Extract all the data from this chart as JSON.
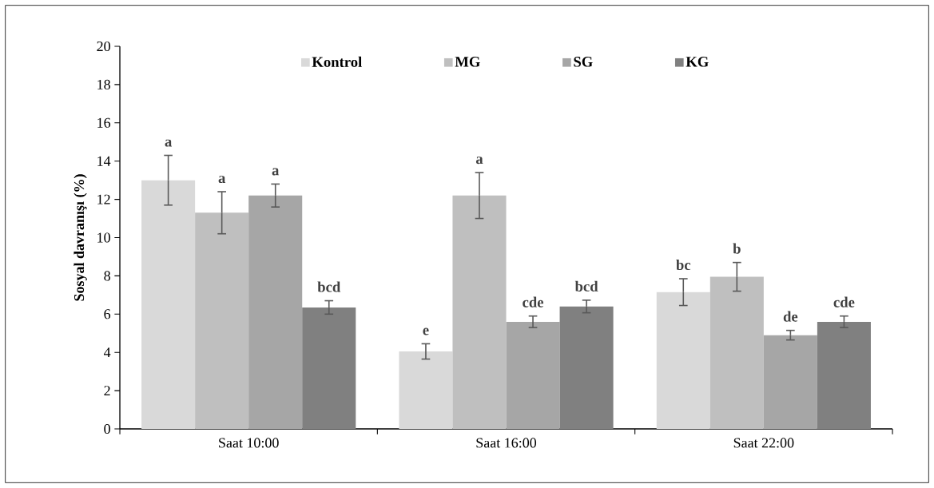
{
  "chart_data": {
    "type": "bar",
    "ylabel": "Sosyal davranışı (%)",
    "categories": [
      "Saat 10:00",
      "Saat 16:00",
      "Saat 22:00"
    ],
    "ylim": [
      0,
      20
    ],
    "yticks": [
      0,
      2,
      4,
      6,
      8,
      10,
      12,
      14,
      16,
      18,
      20
    ],
    "legend": "top",
    "series": [
      {
        "name": "Kontrol",
        "color": "#d9d9d9",
        "values": [
          13.0,
          4.05,
          7.15
        ],
        "errors": [
          1.3,
          0.4,
          0.7
        ],
        "value_labels": [
          "a",
          "e",
          "bc"
        ]
      },
      {
        "name": "MG",
        "color": "#bfbfbf",
        "values": [
          11.3,
          12.2,
          7.95
        ],
        "errors": [
          1.1,
          1.2,
          0.75
        ],
        "value_labels": [
          "a",
          "a",
          "b"
        ]
      },
      {
        "name": "SG",
        "color": "#a6a6a6",
        "values": [
          12.2,
          5.6,
          4.9
        ],
        "errors": [
          0.6,
          0.3,
          0.25
        ],
        "value_labels": [
          "a",
          "cde",
          "de"
        ]
      },
      {
        "name": "KG",
        "color": "#808080",
        "values": [
          6.35,
          6.4,
          5.6
        ],
        "errors": [
          0.35,
          0.33,
          0.3
        ],
        "value_labels": [
          "bcd",
          "bcd",
          "cde"
        ]
      }
    ]
  }
}
